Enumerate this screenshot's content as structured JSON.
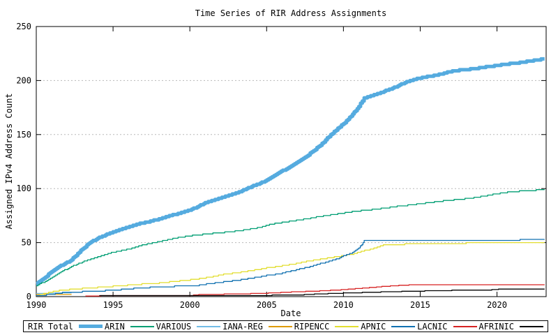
{
  "chart_data": {
    "type": "line",
    "title": "Time Series of RIR Address Assignments",
    "xlabel": "Date",
    "ylabel": "Assigned IPv4 Address Count",
    "xlim": [
      1990,
      2023.2
    ],
    "ylim": [
      0,
      250
    ],
    "x_ticks": [
      1990,
      1995,
      2000,
      2005,
      2010,
      2015,
      2020
    ],
    "y_ticks": [
      0,
      50,
      100,
      150,
      200,
      250
    ],
    "grid": "horizontal dotted gridlines at y-ticks",
    "grid_color": "#b8b8b8",
    "legend_position": "bottom",
    "series": [
      {
        "name": "RIR Total",
        "color": "#55abdf",
        "line_width": 5,
        "x": [
          1990.0,
          1990.3,
          1990.6,
          1991.0,
          1991.4,
          1991.8,
          1992.2,
          1992.6,
          1993.0,
          1993.5,
          1994.0,
          1994.5,
          1995.0,
          1995.5,
          1996.3,
          1997.2,
          1998.1,
          1999.0,
          2000.0,
          2000.6,
          2001.2,
          2002.2,
          2003.1,
          2003.7,
          2004.9,
          2005.6,
          2006.5,
          2007.5,
          2008.5,
          2009.4,
          2010.0,
          2010.5,
          2011.0,
          2011.35,
          2012.1,
          2013.2,
          2014.0,
          2014.9,
          2016.0,
          2017.2,
          2018.5,
          2019.5,
          2020.5,
          2021.7,
          2023.1
        ],
        "y": [
          12,
          15,
          18,
          23,
          27,
          30,
          33,
          38,
          44,
          50,
          54,
          57,
          60,
          62,
          66,
          69,
          72,
          76,
          80,
          84,
          88,
          92,
          96,
          100,
          107,
          113,
          120,
          129,
          140,
          153,
          160,
          167,
          176,
          184,
          187,
          193,
          198,
          202,
          205,
          209,
          211,
          213,
          215,
          217,
          220
        ]
      },
      {
        "name": "ARIN",
        "color": "#009e73",
        "line_width": 1.3,
        "x": [
          1990.0,
          1990.7,
          1991.5,
          1992.3,
          1993.0,
          1994.0,
          1995.0,
          1996.0,
          1997.0,
          1998.0,
          1999.0,
          2000.4,
          2001.5,
          2002.6,
          2003.5,
          2004.5,
          2005.3,
          2006.7,
          2008.0,
          2009.4,
          2010.8,
          2012.1,
          2013.5,
          2015.0,
          2016.5,
          2018.5,
          2019.5,
          2020.8,
          2022.0,
          2023.1
        ],
        "y": [
          10,
          15,
          22,
          28,
          32,
          37,
          41,
          44,
          48,
          51,
          54,
          57,
          58.5,
          60,
          61.5,
          64,
          67,
          70,
          73,
          76,
          79,
          81,
          83.5,
          86,
          88.5,
          91.5,
          94,
          97,
          98,
          99
        ]
      },
      {
        "name": "VARIOUS",
        "color": "#72bce6",
        "line_width": 1.3,
        "x": [
          1990.0,
          1992.3
        ],
        "y": [
          3.2,
          3.3
        ]
      },
      {
        "name": "IANA-REG",
        "color": "#dd9a00",
        "line_width": 1.3,
        "x": [
          1990.0,
          1992.3
        ],
        "y": [
          2.0,
          2.0
        ]
      },
      {
        "name": "RIPENCC",
        "color": "#e2de30",
        "line_width": 1.3,
        "x": [
          1990.0,
          1990.6,
          1991.2,
          1991.7,
          1993.0,
          1994.0,
          1995.0,
          1996.3,
          1997.8,
          1999.0,
          2000.4,
          2001.3,
          2002.2,
          2003.0,
          2004.0,
          2005.0,
          2005.8,
          2006.7,
          2007.6,
          2008.5,
          2009.4,
          2010.0,
          2010.8,
          2011.5,
          2012.1,
          2012.6,
          2014.0,
          2016.0,
          2018.0,
          2020.0,
          2023.1
        ],
        "y": [
          0.5,
          3,
          5,
          6,
          7.5,
          8.5,
          9.5,
          11,
          12.3,
          14,
          16,
          18,
          20.5,
          22,
          24,
          26.5,
          28,
          30,
          32.5,
          34.5,
          36.5,
          38,
          40,
          43,
          45,
          47.5,
          48.5,
          49,
          49.5,
          49.8,
          50
        ]
      },
      {
        "name": "APNIC",
        "color": "#1070b0",
        "line_width": 1.3,
        "x": [
          1990.0,
          1991.0,
          1991.7,
          1993.0,
          1994.5,
          1996.0,
          1996.7,
          1998.0,
          1999.0,
          2000.4,
          2001.3,
          2002.2,
          2003.0,
          2004.0,
          2005.0,
          2005.8,
          2006.7,
          2007.6,
          2008.5,
          2009.4,
          2010.0,
          2010.5,
          2010.9,
          2011.2,
          2011.35,
          2012.0,
          2015.0,
          2018.0,
          2021.5,
          2021.7,
          2023.1
        ],
        "y": [
          0.5,
          2,
          3.5,
          4.5,
          5.5,
          7,
          8,
          9,
          9.5,
          10,
          12,
          13.5,
          15,
          17,
          19.5,
          21,
          24,
          27,
          30.5,
          34,
          37.5,
          40,
          44,
          48,
          51.7,
          52,
          52.2,
          52.4,
          52.5,
          53,
          53
        ]
      },
      {
        "name": "LACNIC",
        "color": "#d62222",
        "line_width": 1.3,
        "x": [
          1993.2,
          1994.1,
          1994.2,
          2000.0,
          2000.7,
          2002.0,
          2003.5,
          2005.0,
          2006.5,
          2008.0,
          2009.5,
          2011.0,
          2012.5,
          2013.5,
          2014.6,
          2016.0,
          2019.0,
          2023.1
        ],
        "y": [
          0.5,
          0.5,
          1.0,
          1.0,
          2.0,
          2.2,
          2.6,
          3.2,
          4.2,
          5.0,
          6.0,
          7.5,
          9.3,
          10.2,
          11,
          11,
          11,
          11
        ]
      },
      {
        "name": "AFRINIC",
        "color": "#000000",
        "line_width": 1.3,
        "x": [
          1994.1,
          2000.0,
          2005.0,
          2007.0,
          2008.0,
          2009.0,
          2010.0,
          2011.0,
          2012.0,
          2013.0,
          2014.6,
          2016.0,
          2018.0,
          2019.9,
          2020.1,
          2023.1
        ],
        "y": [
          0.8,
          1.0,
          1.2,
          1.5,
          2.2,
          2.8,
          3.3,
          3.7,
          4.1,
          4.5,
          5.0,
          5.5,
          6.0,
          6.3,
          7.0,
          7.2
        ]
      }
    ]
  }
}
